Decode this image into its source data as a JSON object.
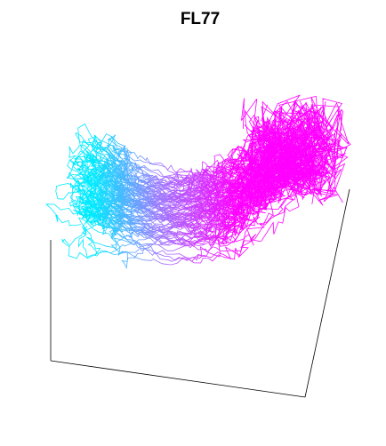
{
  "chart_data": {
    "type": "line3d",
    "title": "FL77"
  }
}
